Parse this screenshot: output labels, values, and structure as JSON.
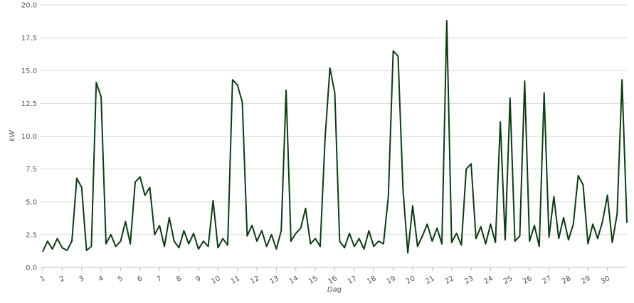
{
  "chart_data": {
    "type": "line",
    "x_label": "Dag",
    "y_label": "kW",
    "x": [
      1,
      1.25,
      1.5,
      1.75,
      2,
      2.25,
      2.5,
      2.75,
      3,
      3.25,
      3.5,
      3.75,
      4,
      4.25,
      4.5,
      4.75,
      5,
      5.25,
      5.5,
      5.75,
      6,
      6.25,
      6.5,
      6.75,
      7,
      7.25,
      7.5,
      7.75,
      8,
      8.25,
      8.5,
      8.75,
      9,
      9.25,
      9.5,
      9.75,
      10,
      10.25,
      10.5,
      10.75,
      11,
      11.25,
      11.5,
      11.75,
      12,
      12.25,
      12.5,
      12.75,
      13,
      13.25,
      13.5,
      13.75,
      14,
      14.25,
      14.5,
      14.75,
      15,
      15.25,
      15.5,
      15.75,
      16,
      16.25,
      16.5,
      16.75,
      17,
      17.25,
      17.5,
      17.75,
      18,
      18.25,
      18.5,
      18.75,
      19,
      19.25,
      19.5,
      19.75,
      20,
      20.25,
      20.5,
      20.75,
      21,
      21.25,
      21.5,
      21.75,
      22,
      22.25,
      22.5,
      22.75,
      23,
      23.25,
      23.5,
      23.75,
      24,
      24.25,
      24.5,
      24.75,
      25,
      25.25,
      25.5,
      25.75,
      26,
      26.25,
      26.5,
      26.75,
      27,
      27.25,
      27.5,
      27.75,
      28,
      28.25,
      28.5,
      28.75,
      29,
      29.25,
      29.5,
      29.75,
      30,
      30.25,
      30.5,
      30.75,
      31
    ],
    "series": [
      {
        "color": "#0d3b12",
        "values": [
          1.2,
          2.0,
          1.4,
          2.2,
          1.5,
          1.3,
          2.0,
          6.8,
          6.1,
          1.3,
          1.6,
          14.1,
          13.0,
          1.8,
          2.5,
          1.6,
          2.0,
          3.5,
          1.8,
          6.5,
          6.9,
          5.5,
          6.1,
          2.5,
          3.2,
          1.6,
          3.8,
          2.0,
          1.5,
          2.8,
          1.8,
          2.6,
          1.4,
          2.0,
          1.6,
          5.1,
          1.5,
          2.2,
          1.7,
          14.3,
          13.9,
          12.6,
          2.4,
          3.2,
          2.0,
          2.8,
          1.6,
          2.5,
          1.4,
          2.8,
          13.5,
          2.0,
          2.6,
          3.0,
          4.5,
          1.8,
          2.2,
          1.6,
          9.8,
          15.2,
          13.3,
          2.0,
          1.5,
          2.6,
          1.6,
          2.2,
          1.4,
          2.8,
          1.6,
          2.0,
          1.8,
          5.4,
          16.5,
          16.1,
          6.0,
          1.1,
          4.7,
          1.6,
          2.4,
          3.3,
          2.0,
          3.0,
          1.8,
          18.8,
          1.9,
          2.6,
          1.7,
          7.5,
          7.9,
          2.2,
          3.1,
          1.8,
          3.3,
          1.9,
          11.1,
          2.1,
          12.9,
          2.0,
          2.4,
          14.2,
          2.0,
          3.2,
          1.6,
          13.3,
          2.3,
          5.4,
          2.2,
          3.8,
          2.1,
          3.3,
          7.0,
          6.3,
          1.8,
          3.3,
          2.2,
          3.5,
          5.5,
          1.9,
          4.1,
          14.3,
          3.4
        ]
      }
    ],
    "xlim": [
      1,
      31
    ],
    "xticks": [
      1,
      2,
      3,
      4,
      5,
      6,
      7,
      8,
      9,
      10,
      11,
      12,
      13,
      14,
      15,
      16,
      17,
      18,
      19,
      20,
      21,
      22,
      23,
      24,
      25,
      26,
      27,
      28,
      29,
      30
    ],
    "ylim": [
      0,
      20
    ],
    "yticks": [
      {
        "value": 0,
        "label": "0.0"
      },
      {
        "value": 2.5,
        "label": "2.5"
      },
      {
        "value": 5,
        "label": "5.0"
      },
      {
        "value": 7.5,
        "label": "7.5"
      },
      {
        "value": 10,
        "label": "10.0"
      },
      {
        "value": 12.5,
        "label": "12.5"
      },
      {
        "value": 15,
        "label": "15.0"
      },
      {
        "value": 17.5,
        "label": "17.5"
      },
      {
        "value": 20,
        "label": "20.0"
      }
    ],
    "grid": true
  }
}
